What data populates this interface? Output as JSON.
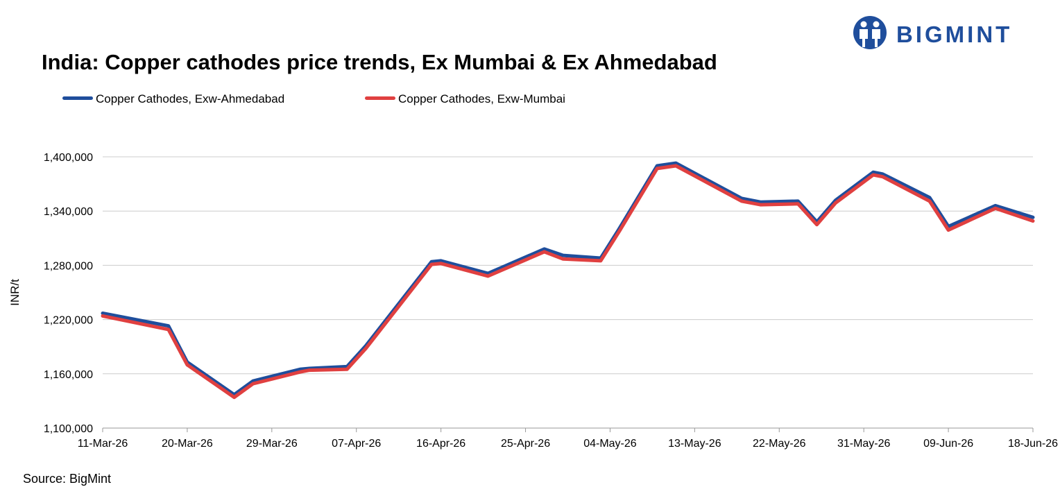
{
  "brand": {
    "name": "BIGMINT",
    "color": "#1f4e9c"
  },
  "source": "Source: BigMint",
  "chart_data": {
    "type": "line",
    "title": "India: Copper cathodes price trends, Ex Mumbai & Ex Ahmedabad",
    "xlabel": "",
    "ylabel": "INR/t",
    "ylim": [
      1100000,
      1400000
    ],
    "yticks": [
      1100000,
      1160000,
      1220000,
      1280000,
      1340000,
      1400000
    ],
    "ytick_labels": [
      "1,100,000",
      "1,160,000",
      "1,220,000",
      "1,280,000",
      "1,340,000",
      "1,400,000"
    ],
    "xticks": [
      "11-Mar-26",
      "20-Mar-26",
      "29-Mar-26",
      "07-Apr-26",
      "16-Apr-26",
      "25-Apr-26",
      "04-May-26",
      "13-May-26",
      "22-May-26",
      "31-May-26",
      "09-Jun-26",
      "18-Jun-26"
    ],
    "xlim": [
      "11-Mar-26",
      "18-Jun-26"
    ],
    "grid": "horizontal",
    "legend": "top-left",
    "series": [
      {
        "name": "Copper Cathodes, Exw-Ahmedabad",
        "color": "#1f4e9c",
        "x": [
          "11-Mar-26",
          "18-Mar-26",
          "20-Mar-26",
          "25-Mar-26",
          "27-Mar-26",
          "01-Apr-26",
          "02-Apr-26",
          "06-Apr-26",
          "08-Apr-26",
          "15-Apr-26",
          "16-Apr-26",
          "21-Apr-26",
          "27-Apr-26",
          "29-Apr-26",
          "03-May-26",
          "05-May-26",
          "09-May-26",
          "11-May-26",
          "18-May-26",
          "20-May-26",
          "24-May-26",
          "26-May-26",
          "28-May-26",
          "01-Jun-26",
          "02-Jun-26",
          "07-Jun-26",
          "09-Jun-26",
          "14-Jun-26",
          "18-Jun-26"
        ],
        "values": [
          1227000,
          1213000,
          1173000,
          1137000,
          1152000,
          1165000,
          1166000,
          1168000,
          1191000,
          1284000,
          1285000,
          1271000,
          1298000,
          1291000,
          1288000,
          1321000,
          1390000,
          1393000,
          1354000,
          1350000,
          1351000,
          1328000,
          1352000,
          1383000,
          1381000,
          1355000,
          1323000,
          1346000,
          1333000
        ]
      },
      {
        "name": "Copper Cathodes, Exw-Mumbai",
        "color": "#e04040",
        "x": [
          "11-Mar-26",
          "18-Mar-26",
          "20-Mar-26",
          "25-Mar-26",
          "27-Mar-26",
          "01-Apr-26",
          "02-Apr-26",
          "06-Apr-26",
          "08-Apr-26",
          "15-Apr-26",
          "16-Apr-26",
          "21-Apr-26",
          "27-Apr-26",
          "29-Apr-26",
          "03-May-26",
          "05-May-26",
          "09-May-26",
          "11-May-26",
          "18-May-26",
          "20-May-26",
          "24-May-26",
          "26-May-26",
          "28-May-26",
          "01-Jun-26",
          "02-Jun-26",
          "07-Jun-26",
          "09-Jun-26",
          "14-Jun-26",
          "18-Jun-26"
        ],
        "values": [
          1224000,
          1209000,
          1170000,
          1134000,
          1149000,
          1162000,
          1164000,
          1165000,
          1188000,
          1281000,
          1282000,
          1268000,
          1295000,
          1287000,
          1285000,
          1318000,
          1387000,
          1390000,
          1351000,
          1347000,
          1348000,
          1325000,
          1349000,
          1380000,
          1378000,
          1351000,
          1319000,
          1343000,
          1329000
        ]
      }
    ]
  }
}
